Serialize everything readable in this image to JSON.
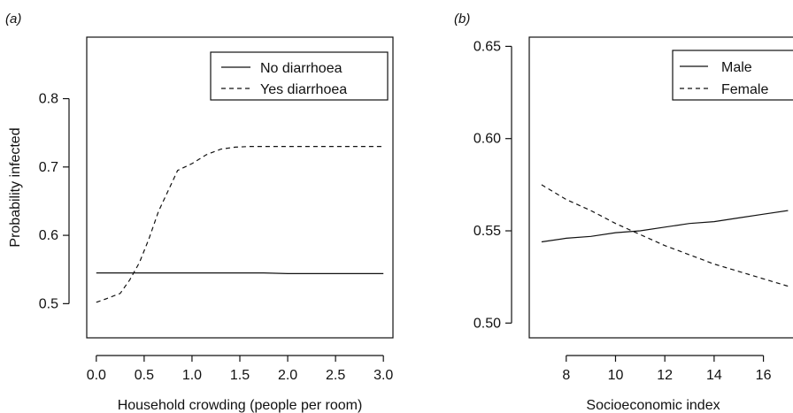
{
  "chart_data": [
    {
      "panel": "(a)",
      "type": "line",
      "xlabel": "Household crowding (people per room)",
      "ylabel": "Probability infected",
      "xlim": [
        -0.1,
        3.1
      ],
      "ylim": [
        0.45,
        0.89
      ],
      "xticks": [
        "0.0",
        "0.5",
        "1.0",
        "1.5",
        "2.0",
        "2.5",
        "3.0"
      ],
      "yticks": [
        "0.5",
        "0.6",
        "0.7",
        "0.8"
      ],
      "legend_position": "top-right",
      "series": [
        {
          "name": "No diarrhoea",
          "style": "solid",
          "x": [
            0.0,
            0.5,
            1.0,
            1.5,
            1.75,
            2.0,
            2.5,
            3.0
          ],
          "y": [
            0.545,
            0.545,
            0.545,
            0.545,
            0.545,
            0.544,
            0.544,
            0.544
          ]
        },
        {
          "name": "Yes diarrhoea",
          "style": "dashed",
          "x": [
            0.0,
            0.1,
            0.25,
            0.35,
            0.45,
            0.55,
            0.65,
            0.75,
            0.85,
            1.0,
            1.15,
            1.3,
            1.45,
            1.6,
            2.0,
            2.5,
            3.0
          ],
          "y": [
            0.502,
            0.507,
            0.515,
            0.535,
            0.56,
            0.595,
            0.635,
            0.665,
            0.695,
            0.705,
            0.718,
            0.726,
            0.729,
            0.73,
            0.73,
            0.73,
            0.73
          ]
        }
      ]
    },
    {
      "panel": "(b)",
      "type": "line",
      "xlabel": "Socioeconomic index",
      "ylabel": "",
      "xlim": [
        6.5,
        17.2
      ],
      "ylim": [
        0.492,
        0.655
      ],
      "xticks": [
        "8",
        "10",
        "12",
        "14",
        "16"
      ],
      "yticks": [
        "0.50",
        "0.55",
        "0.60",
        "0.65"
      ],
      "legend_position": "top-right",
      "series": [
        {
          "name": "Male",
          "style": "solid",
          "x": [
            7,
            8,
            9,
            10,
            11,
            12,
            13,
            14,
            15,
            16,
            17
          ],
          "y": [
            0.544,
            0.546,
            0.547,
            0.549,
            0.55,
            0.552,
            0.554,
            0.555,
            0.557,
            0.559,
            0.561
          ]
        },
        {
          "name": "Female",
          "style": "dashed",
          "x": [
            7,
            8,
            9,
            10,
            11,
            12,
            13,
            14,
            15,
            16,
            17
          ],
          "y": [
            0.575,
            0.567,
            0.561,
            0.554,
            0.548,
            0.542,
            0.537,
            0.532,
            0.528,
            0.524,
            0.52
          ]
        }
      ]
    }
  ]
}
